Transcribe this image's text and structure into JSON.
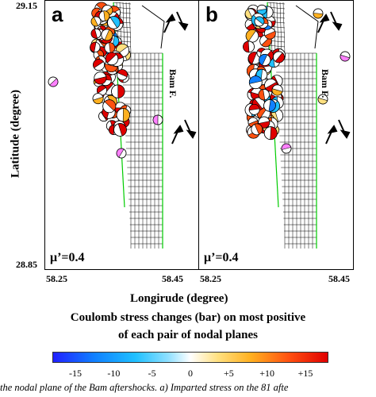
{
  "panels": [
    {
      "label": "a",
      "mu": "μ’=0.4",
      "fault": "Bam F."
    },
    {
      "label": "b",
      "mu": "μ’=0.4",
      "fault": "Bam F."
    }
  ],
  "axes": {
    "y_ticks": [
      "29.15",
      "28.85"
    ],
    "x_ticks": [
      "58.25",
      "58.45"
    ],
    "ylabel": "Latitude (degree)",
    "xlabel": "Longirude (degree)"
  },
  "caption": {
    "line1": "Coulomb stress changes (bar) on most positive",
    "line2": "of each pair of nodal planes"
  },
  "colorbar": {
    "ticks": [
      "-15",
      "-10",
      "-5",
      "0",
      "+5",
      "+10",
      "+15"
    ],
    "values": [
      -15,
      -10,
      -5,
      0,
      5,
      10,
      15
    ],
    "range": [
      -18,
      18
    ],
    "colors": [
      "#2020ff",
      "#1080ff",
      "#20c0ff",
      "#90e0ff",
      "#ffffff",
      "#ffe080",
      "#ffb020",
      "#ff5010",
      "#e00000"
    ]
  },
  "footer": "the nodal plane of the Bam aftershocks. a) Imparted stress on the 81 afte"
}
